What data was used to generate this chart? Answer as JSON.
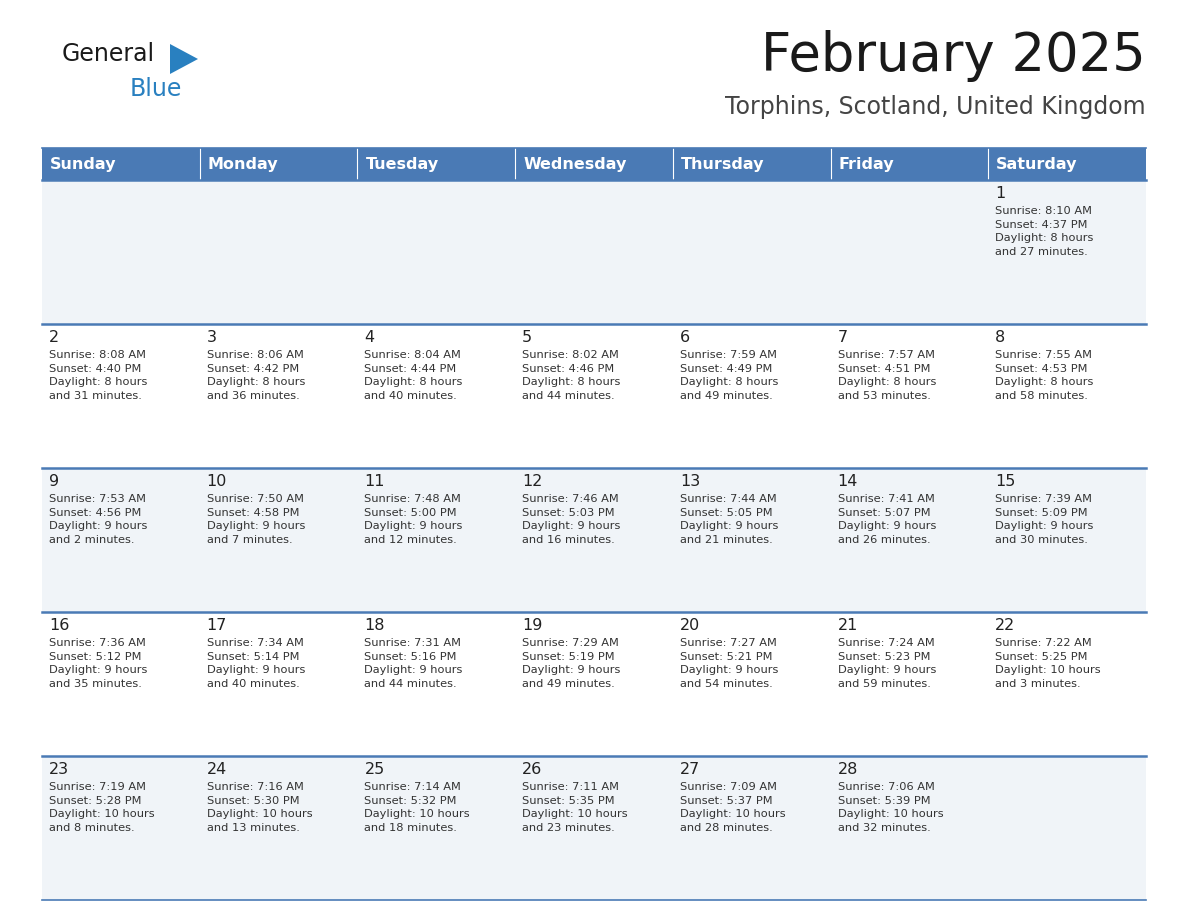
{
  "title": "February 2025",
  "subtitle": "Torphins, Scotland, United Kingdom",
  "header_color": "#4a7ab5",
  "header_text_color": "#ffffff",
  "day_names": [
    "Sunday",
    "Monday",
    "Tuesday",
    "Wednesday",
    "Thursday",
    "Friday",
    "Saturday"
  ],
  "cell_bg_odd": "#f0f4f8",
  "cell_bg_even": "#ffffff",
  "border_color": "#4a7ab5",
  "text_color": "#333333",
  "weeks": [
    [
      {
        "day": null,
        "info": null
      },
      {
        "day": null,
        "info": null
      },
      {
        "day": null,
        "info": null
      },
      {
        "day": null,
        "info": null
      },
      {
        "day": null,
        "info": null
      },
      {
        "day": null,
        "info": null
      },
      {
        "day": 1,
        "info": "Sunrise: 8:10 AM\nSunset: 4:37 PM\nDaylight: 8 hours\nand 27 minutes."
      }
    ],
    [
      {
        "day": 2,
        "info": "Sunrise: 8:08 AM\nSunset: 4:40 PM\nDaylight: 8 hours\nand 31 minutes."
      },
      {
        "day": 3,
        "info": "Sunrise: 8:06 AM\nSunset: 4:42 PM\nDaylight: 8 hours\nand 36 minutes."
      },
      {
        "day": 4,
        "info": "Sunrise: 8:04 AM\nSunset: 4:44 PM\nDaylight: 8 hours\nand 40 minutes."
      },
      {
        "day": 5,
        "info": "Sunrise: 8:02 AM\nSunset: 4:46 PM\nDaylight: 8 hours\nand 44 minutes."
      },
      {
        "day": 6,
        "info": "Sunrise: 7:59 AM\nSunset: 4:49 PM\nDaylight: 8 hours\nand 49 minutes."
      },
      {
        "day": 7,
        "info": "Sunrise: 7:57 AM\nSunset: 4:51 PM\nDaylight: 8 hours\nand 53 minutes."
      },
      {
        "day": 8,
        "info": "Sunrise: 7:55 AM\nSunset: 4:53 PM\nDaylight: 8 hours\nand 58 minutes."
      }
    ],
    [
      {
        "day": 9,
        "info": "Sunrise: 7:53 AM\nSunset: 4:56 PM\nDaylight: 9 hours\nand 2 minutes."
      },
      {
        "day": 10,
        "info": "Sunrise: 7:50 AM\nSunset: 4:58 PM\nDaylight: 9 hours\nand 7 minutes."
      },
      {
        "day": 11,
        "info": "Sunrise: 7:48 AM\nSunset: 5:00 PM\nDaylight: 9 hours\nand 12 minutes."
      },
      {
        "day": 12,
        "info": "Sunrise: 7:46 AM\nSunset: 5:03 PM\nDaylight: 9 hours\nand 16 minutes."
      },
      {
        "day": 13,
        "info": "Sunrise: 7:44 AM\nSunset: 5:05 PM\nDaylight: 9 hours\nand 21 minutes."
      },
      {
        "day": 14,
        "info": "Sunrise: 7:41 AM\nSunset: 5:07 PM\nDaylight: 9 hours\nand 26 minutes."
      },
      {
        "day": 15,
        "info": "Sunrise: 7:39 AM\nSunset: 5:09 PM\nDaylight: 9 hours\nand 30 minutes."
      }
    ],
    [
      {
        "day": 16,
        "info": "Sunrise: 7:36 AM\nSunset: 5:12 PM\nDaylight: 9 hours\nand 35 minutes."
      },
      {
        "day": 17,
        "info": "Sunrise: 7:34 AM\nSunset: 5:14 PM\nDaylight: 9 hours\nand 40 minutes."
      },
      {
        "day": 18,
        "info": "Sunrise: 7:31 AM\nSunset: 5:16 PM\nDaylight: 9 hours\nand 44 minutes."
      },
      {
        "day": 19,
        "info": "Sunrise: 7:29 AM\nSunset: 5:19 PM\nDaylight: 9 hours\nand 49 minutes."
      },
      {
        "day": 20,
        "info": "Sunrise: 7:27 AM\nSunset: 5:21 PM\nDaylight: 9 hours\nand 54 minutes."
      },
      {
        "day": 21,
        "info": "Sunrise: 7:24 AM\nSunset: 5:23 PM\nDaylight: 9 hours\nand 59 minutes."
      },
      {
        "day": 22,
        "info": "Sunrise: 7:22 AM\nSunset: 5:25 PM\nDaylight: 10 hours\nand 3 minutes."
      }
    ],
    [
      {
        "day": 23,
        "info": "Sunrise: 7:19 AM\nSunset: 5:28 PM\nDaylight: 10 hours\nand 8 minutes."
      },
      {
        "day": 24,
        "info": "Sunrise: 7:16 AM\nSunset: 5:30 PM\nDaylight: 10 hours\nand 13 minutes."
      },
      {
        "day": 25,
        "info": "Sunrise: 7:14 AM\nSunset: 5:32 PM\nDaylight: 10 hours\nand 18 minutes."
      },
      {
        "day": 26,
        "info": "Sunrise: 7:11 AM\nSunset: 5:35 PM\nDaylight: 10 hours\nand 23 minutes."
      },
      {
        "day": 27,
        "info": "Sunrise: 7:09 AM\nSunset: 5:37 PM\nDaylight: 10 hours\nand 28 minutes."
      },
      {
        "day": 28,
        "info": "Sunrise: 7:06 AM\nSunset: 5:39 PM\nDaylight: 10 hours\nand 32 minutes."
      },
      {
        "day": null,
        "info": null
      }
    ]
  ],
  "logo_general_color": "#1a1a1a",
  "logo_blue_color": "#2980c0",
  "logo_triangle_color": "#2980c0"
}
